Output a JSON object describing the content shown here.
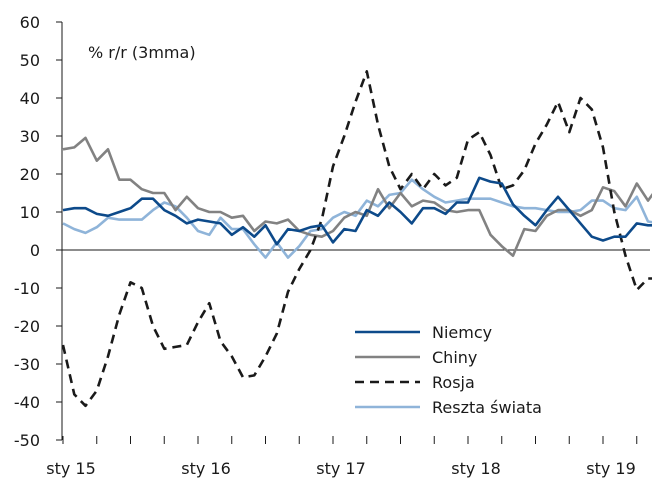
{
  "chart_data": {
    "type": "line",
    "unit_label": "% r/r (3mma)",
    "ylim": [
      -50,
      60
    ],
    "yticks": [
      60,
      50,
      40,
      30,
      20,
      10,
      0,
      -10,
      -20,
      -30,
      -40,
      -50
    ],
    "x_tick_labels": [
      "sty 15",
      "sty 16",
      "sty 17",
      "sty 18",
      "sty 19"
    ],
    "x_tick_months": [
      0,
      12,
      24,
      36,
      48
    ],
    "x_range_months": [
      0,
      54
    ],
    "grid": false,
    "legend_position": "lower-right",
    "series": [
      {
        "name": "Niemcy",
        "color": "#0d4a8a",
        "dash": "none",
        "values": [
          10.5,
          11,
          11,
          9.5,
          9,
          10,
          11,
          13.5,
          13.5,
          10.5,
          9,
          7,
          8,
          7.5,
          7,
          4,
          6,
          3.5,
          6.5,
          1.5,
          5.5,
          5,
          6,
          6.5,
          2,
          5.5,
          5,
          10.5,
          9,
          12.5,
          10,
          7,
          11,
          11,
          9.5,
          12.5,
          12.5,
          19,
          18,
          17.5,
          12,
          9,
          6.5,
          10.5,
          14,
          10.5,
          7,
          3.5,
          2.5,
          3.5,
          3.5,
          7,
          6.5,
          6.5,
          6.5
        ]
      },
      {
        "name": "Chiny",
        "color": "#828282",
        "dash": "none",
        "values": [
          26.5,
          27,
          29.5,
          23.5,
          26.5,
          18.5,
          18.5,
          16,
          15,
          15,
          10.5,
          14,
          11,
          10,
          10,
          8.5,
          9,
          5,
          7.5,
          7,
          8,
          5,
          4,
          3.5,
          5,
          8.5,
          10,
          9,
          16,
          11,
          15,
          11.5,
          13,
          12.5,
          10.5,
          10,
          10.5,
          10.5,
          4,
          1,
          -1.5,
          5.5,
          5,
          9,
          10.5,
          10.5,
          9,
          10.5,
          16.5,
          15.5,
          11.5,
          17.5,
          13,
          17,
          12
        ]
      },
      {
        "name": "Rosja",
        "color": "#1a1a1a",
        "dash": "9,6",
        "values": [
          -25,
          -38,
          -41,
          -37,
          -28,
          -17,
          -8.5,
          -10,
          -20,
          -26,
          -25.5,
          -25,
          -19,
          -14,
          -24,
          -28,
          -33.5,
          -33,
          -28,
          -22,
          -11,
          -5,
          0,
          8,
          22,
          30,
          39,
          47,
          33,
          22,
          16,
          20,
          16,
          20,
          17,
          19,
          29,
          31,
          25,
          16,
          17,
          21,
          28,
          33,
          39,
          31,
          40,
          37,
          27,
          10,
          -1.5,
          -10.5,
          -7.5,
          -7.5,
          -7.5
        ]
      },
      {
        "name": "Reszta świata",
        "color": "#8fb4d9",
        "dash": "none",
        "values": [
          7,
          5.5,
          4.5,
          6,
          8.5,
          8,
          8,
          8,
          10.5,
          12.5,
          11.5,
          8.5,
          5,
          4,
          8.5,
          5.5,
          5.5,
          1.5,
          -2,
          2,
          -2,
          1,
          5,
          5.5,
          8.5,
          10,
          9,
          13,
          11.5,
          14.5,
          15,
          18.5,
          16,
          14,
          12.5,
          13,
          13.5,
          13.5,
          13.5,
          12.5,
          11.5,
          11,
          11,
          10.5,
          10,
          10,
          10.5,
          13,
          13,
          11,
          10.5,
          14,
          7.5,
          7,
          6
        ]
      }
    ]
  }
}
